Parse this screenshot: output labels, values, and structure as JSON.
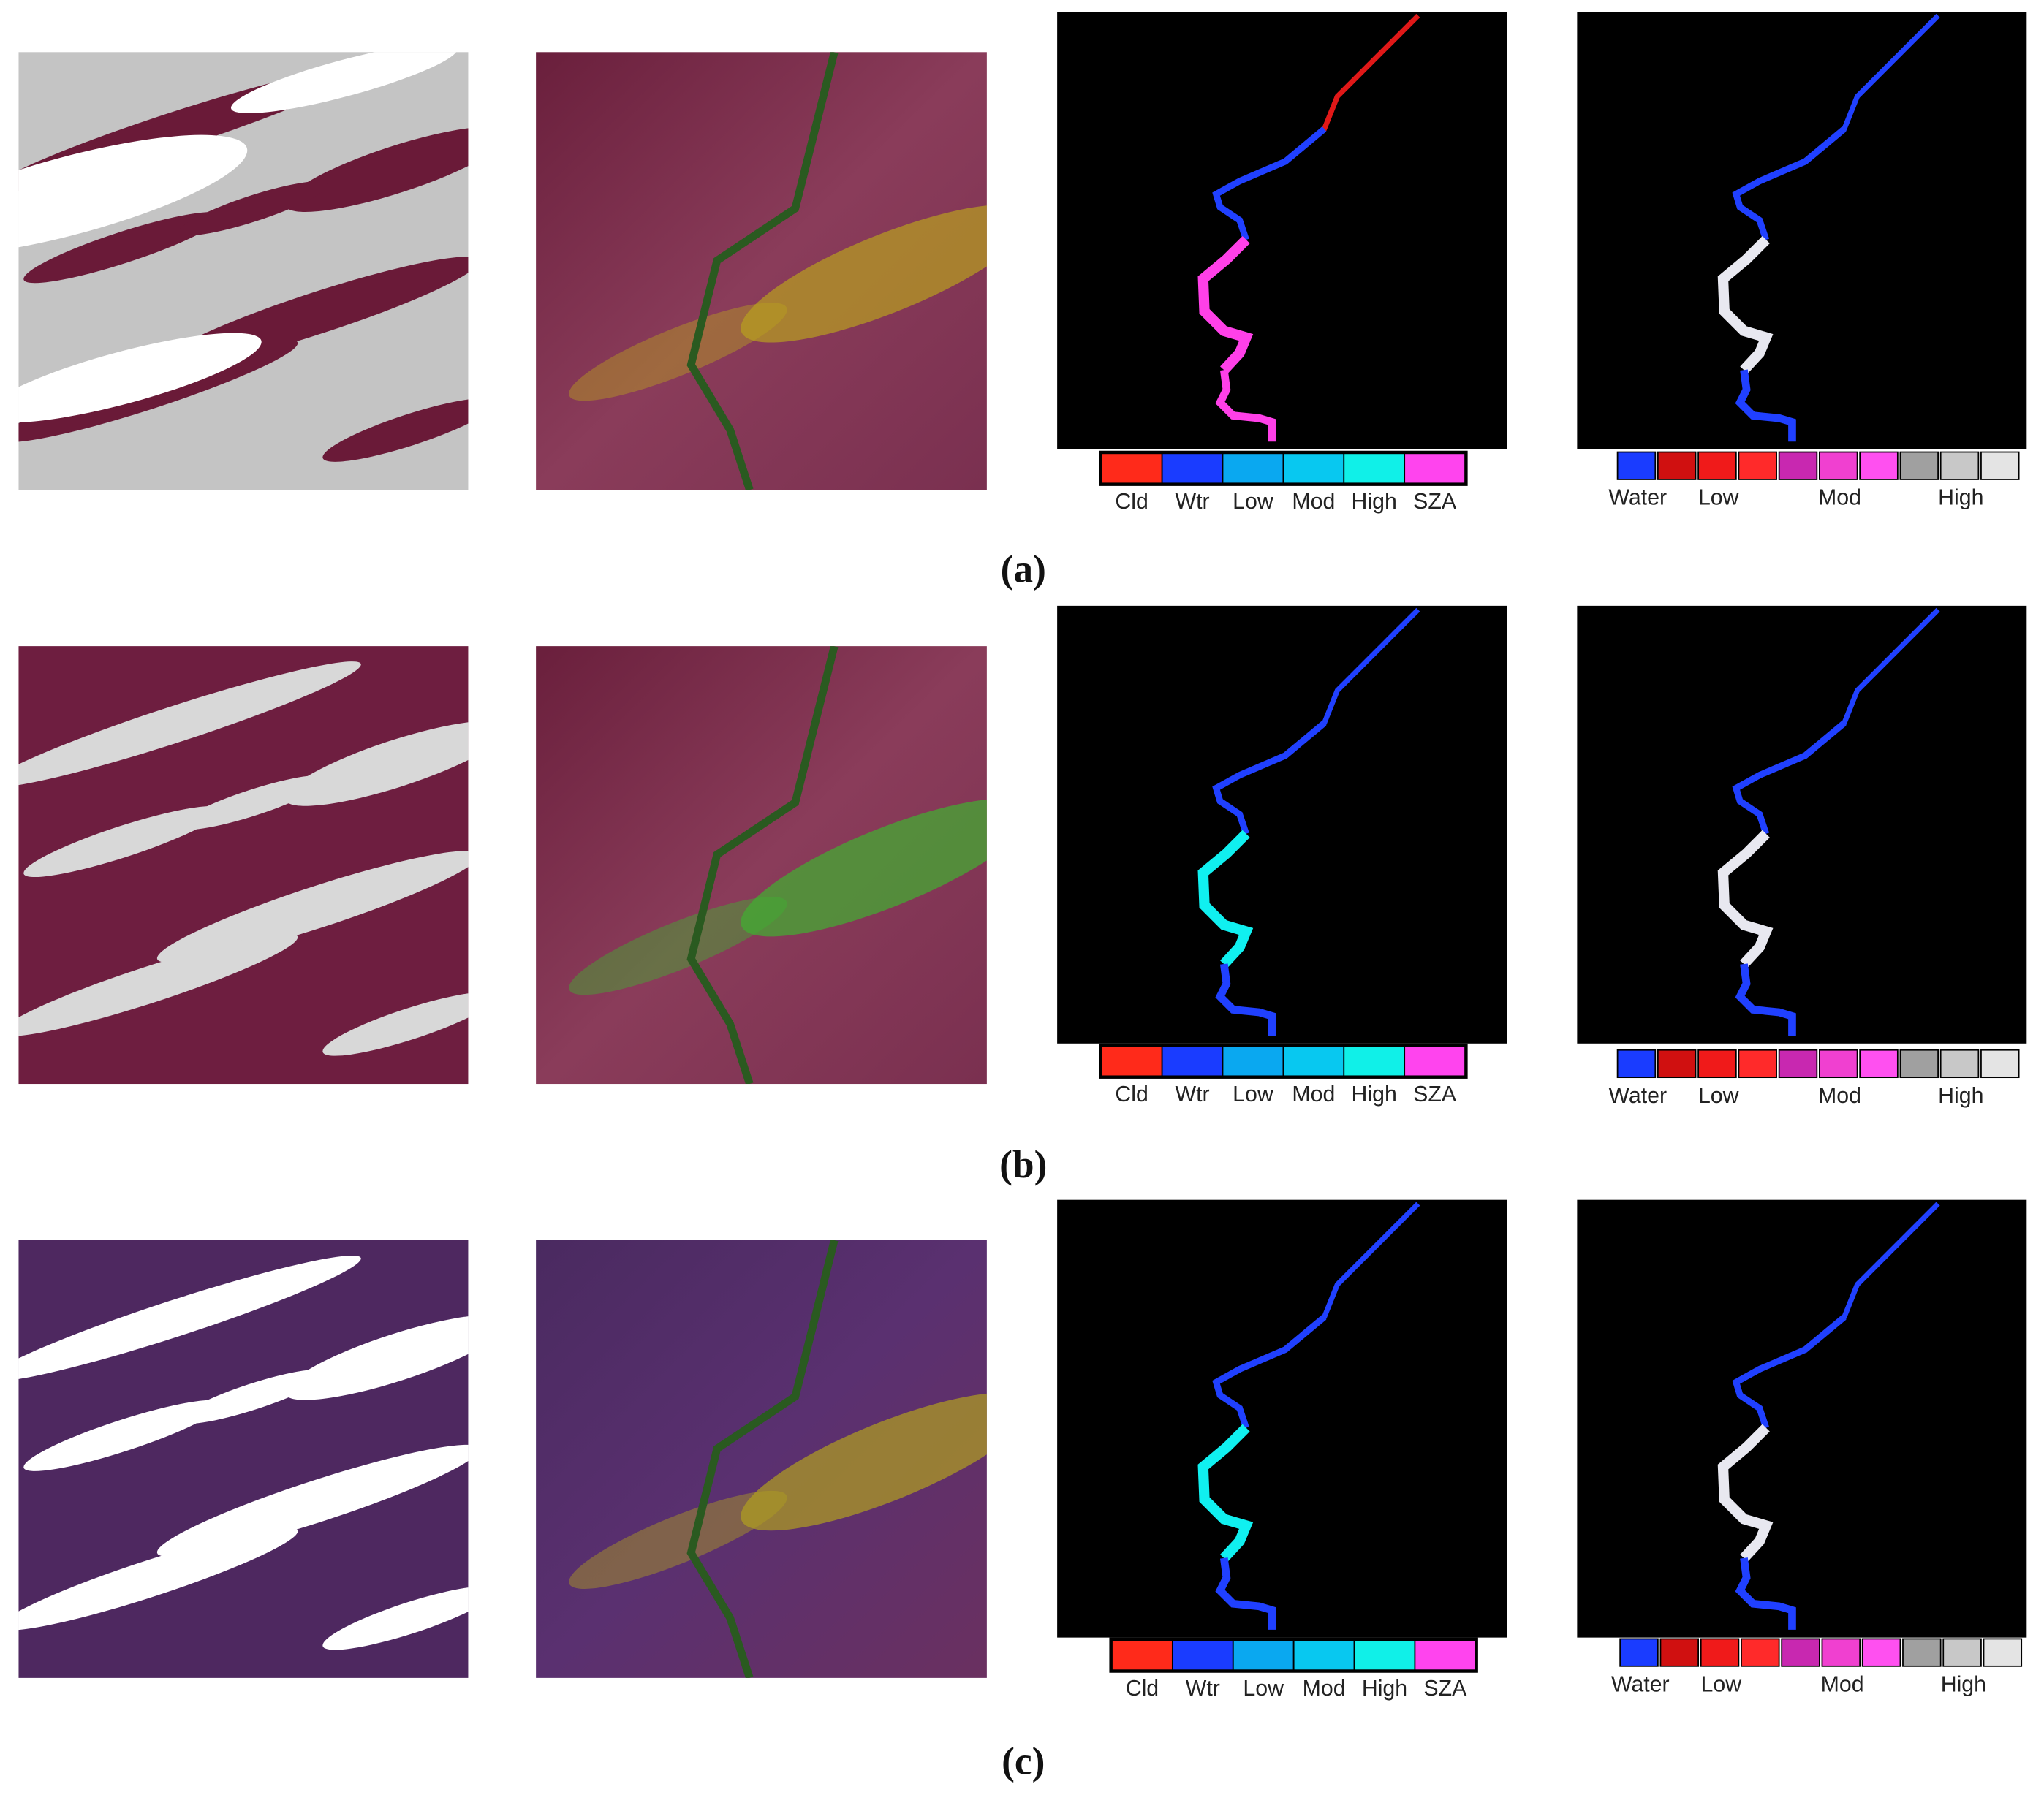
{
  "panels": [
    {
      "label": "(a)"
    },
    {
      "label": "(b)"
    },
    {
      "label": "(c)"
    }
  ],
  "legend_class": [
    "Cld",
    "Wtr",
    "Low",
    "Mod",
    "High",
    "SZA"
  ],
  "legend_fraction": [
    "Water",
    "Low",
    "Mod",
    "High"
  ]
}
